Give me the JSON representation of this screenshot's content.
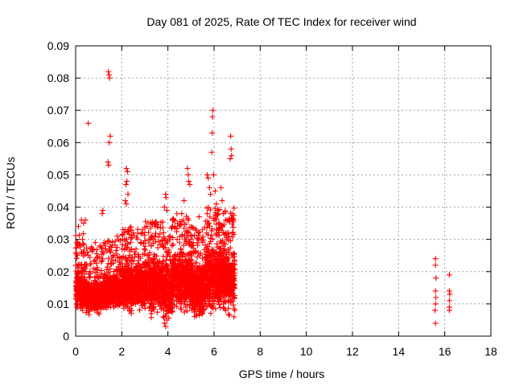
{
  "chart_data": {
    "type": "scatter",
    "title": "Day 081 of 2025, Rate Of TEC Index for receiver wind",
    "xlabel": "GPS time / hours",
    "ylabel": "ROTI / TECUs",
    "xlim": [
      0,
      18
    ],
    "ylim": [
      0,
      0.09
    ],
    "xticks": [
      "0",
      "2",
      "4",
      "6",
      "8",
      "10",
      "12",
      "14",
      "16",
      "18"
    ],
    "yticks": [
      "0",
      "0.01",
      "0.02",
      "0.03",
      "0.04",
      "0.05",
      "0.06",
      "0.07",
      "0.08",
      "0.09"
    ],
    "grid": true,
    "marker": "+",
    "series_color": "#ff0000",
    "series": [
      {
        "points": [
          [
            1.42,
            0.082
          ],
          [
            1.45,
            0.081
          ],
          [
            1.47,
            0.08
          ],
          [
            0.55,
            0.066
          ],
          [
            1.5,
            0.062
          ],
          [
            1.45,
            0.06
          ],
          [
            1.4,
            0.054
          ],
          [
            1.43,
            0.053
          ],
          [
            2.2,
            0.052
          ],
          [
            2.25,
            0.051
          ],
          [
            2.22,
            0.048
          ],
          [
            2.18,
            0.047
          ],
          [
            2.15,
            0.042
          ],
          [
            2.2,
            0.041
          ],
          [
            2.27,
            0.044
          ],
          [
            1.18,
            0.039
          ],
          [
            1.15,
            0.038
          ],
          [
            0.25,
            0.036
          ],
          [
            0.35,
            0.035
          ],
          [
            0.12,
            0.034
          ],
          [
            0.42,
            0.036
          ],
          [
            0.3,
            0.03
          ],
          [
            0.05,
            0.029
          ],
          [
            0.08,
            0.025
          ],
          [
            0.15,
            0.022
          ],
          [
            0.45,
            0.02
          ],
          [
            0.85,
            0.029
          ],
          [
            1.05,
            0.028
          ],
          [
            1.3,
            0.027
          ],
          [
            1.8,
            0.031
          ],
          [
            2.5,
            0.032
          ],
          [
            2.9,
            0.033
          ],
          [
            3.1,
            0.025
          ],
          [
            3.35,
            0.03
          ],
          [
            3.45,
            0.034
          ],
          [
            3.9,
            0.044
          ],
          [
            3.92,
            0.043
          ],
          [
            3.85,
            0.04
          ],
          [
            3.95,
            0.039
          ],
          [
            4.25,
            0.036
          ],
          [
            4.2,
            0.034
          ],
          [
            4.4,
            0.03
          ],
          [
            4.6,
            0.038
          ],
          [
            4.7,
            0.042
          ],
          [
            4.85,
            0.052
          ],
          [
            4.88,
            0.05
          ],
          [
            4.9,
            0.048
          ],
          [
            4.95,
            0.047
          ],
          [
            5.05,
            0.031
          ],
          [
            5.1,
            0.029
          ],
          [
            5.35,
            0.037
          ],
          [
            5.5,
            0.033
          ],
          [
            5.7,
            0.05
          ],
          [
            5.75,
            0.049
          ],
          [
            5.8,
            0.046
          ],
          [
            5.85,
            0.044
          ],
          [
            5.95,
            0.07
          ],
          [
            5.93,
            0.068
          ],
          [
            5.92,
            0.063
          ],
          [
            5.9,
            0.057
          ],
          [
            5.98,
            0.05
          ],
          [
            6.05,
            0.045
          ],
          [
            6.1,
            0.041
          ],
          [
            6.15,
            0.039
          ],
          [
            6.2,
            0.035
          ],
          [
            6.3,
            0.046
          ],
          [
            6.35,
            0.042
          ],
          [
            6.4,
            0.038
          ],
          [
            6.5,
            0.036
          ],
          [
            6.6,
            0.032
          ],
          [
            6.72,
            0.062
          ],
          [
            6.74,
            0.058
          ],
          [
            6.76,
            0.056
          ],
          [
            6.7,
            0.055
          ],
          [
            6.78,
            0.038
          ],
          [
            6.8,
            0.032
          ],
          [
            6.82,
            0.02
          ],
          [
            6.85,
            0.015
          ],
          [
            6.88,
            0.012
          ],
          [
            6.9,
            0.008
          ],
          [
            6.86,
            0.006
          ],
          [
            0.05,
            0.015
          ],
          [
            0.1,
            0.012
          ],
          [
            0.2,
            0.01
          ],
          [
            0.3,
            0.008
          ],
          [
            0.4,
            0.011
          ],
          [
            0.5,
            0.014
          ],
          [
            0.6,
            0.016
          ],
          [
            0.7,
            0.012
          ],
          [
            0.8,
            0.009
          ],
          [
            0.9,
            0.01
          ],
          [
            1.0,
            0.013
          ],
          [
            1.1,
            0.015
          ],
          [
            1.2,
            0.011
          ],
          [
            1.3,
            0.009
          ],
          [
            1.4,
            0.012
          ],
          [
            1.5,
            0.014
          ],
          [
            1.6,
            0.016
          ],
          [
            1.7,
            0.013
          ],
          [
            1.8,
            0.011
          ],
          [
            1.9,
            0.01
          ],
          [
            2.0,
            0.012
          ],
          [
            2.1,
            0.014
          ],
          [
            2.3,
            0.016
          ],
          [
            2.4,
            0.013
          ],
          [
            2.5,
            0.011
          ],
          [
            2.6,
            0.01
          ],
          [
            2.7,
            0.013
          ],
          [
            2.8,
            0.015
          ],
          [
            2.9,
            0.014
          ],
          [
            3.0,
            0.012
          ],
          [
            3.1,
            0.011
          ],
          [
            3.2,
            0.013
          ],
          [
            3.3,
            0.015
          ],
          [
            3.4,
            0.016
          ],
          [
            3.5,
            0.014
          ],
          [
            3.6,
            0.012
          ],
          [
            3.7,
            0.01
          ],
          [
            3.8,
            0.006
          ],
          [
            3.85,
            0.004
          ],
          [
            3.9,
            0.003
          ],
          [
            3.95,
            0.005
          ],
          [
            4.0,
            0.008
          ],
          [
            4.1,
            0.012
          ],
          [
            4.2,
            0.015
          ],
          [
            4.3,
            0.018
          ],
          [
            4.4,
            0.016
          ],
          [
            4.5,
            0.014
          ],
          [
            4.6,
            0.012
          ],
          [
            4.7,
            0.01
          ],
          [
            4.8,
            0.013
          ],
          [
            4.9,
            0.016
          ],
          [
            5.0,
            0.018
          ],
          [
            5.1,
            0.015
          ],
          [
            5.2,
            0.012
          ],
          [
            5.3,
            0.01
          ],
          [
            5.4,
            0.008
          ],
          [
            5.5,
            0.011
          ],
          [
            5.6,
            0.014
          ],
          [
            5.7,
            0.012
          ],
          [
            5.8,
            0.01
          ],
          [
            5.9,
            0.009
          ],
          [
            6.0,
            0.011
          ],
          [
            6.1,
            0.013
          ],
          [
            6.2,
            0.015
          ],
          [
            6.3,
            0.012
          ],
          [
            6.4,
            0.01
          ],
          [
            6.5,
            0.008
          ],
          [
            6.6,
            0.011
          ],
          [
            6.7,
            0.013
          ],
          [
            15.6,
            0.024
          ],
          [
            15.6,
            0.022
          ],
          [
            15.62,
            0.018
          ],
          [
            15.6,
            0.014
          ],
          [
            15.62,
            0.012
          ],
          [
            15.6,
            0.01
          ],
          [
            15.58,
            0.008
          ],
          [
            15.6,
            0.004
          ],
          [
            16.2,
            0.019
          ],
          [
            16.2,
            0.014
          ],
          [
            16.22,
            0.013
          ],
          [
            16.2,
            0.011
          ],
          [
            16.2,
            0.009
          ],
          [
            16.2,
            0.008
          ]
        ]
      }
    ],
    "dense_bands": [
      [
        0.0,
        0.4,
        0.006,
        0.022
      ],
      [
        0.4,
        1.2,
        0.006,
        0.018
      ],
      [
        1.2,
        2.0,
        0.007,
        0.02
      ],
      [
        2.0,
        3.0,
        0.006,
        0.024
      ],
      [
        3.0,
        3.8,
        0.005,
        0.026
      ],
      [
        3.8,
        4.2,
        0.003,
        0.024
      ],
      [
        4.2,
        5.0,
        0.005,
        0.028
      ],
      [
        5.0,
        5.6,
        0.004,
        0.024
      ],
      [
        5.6,
        6.2,
        0.004,
        0.03
      ],
      [
        6.2,
        6.9,
        0.005,
        0.03
      ]
    ]
  }
}
